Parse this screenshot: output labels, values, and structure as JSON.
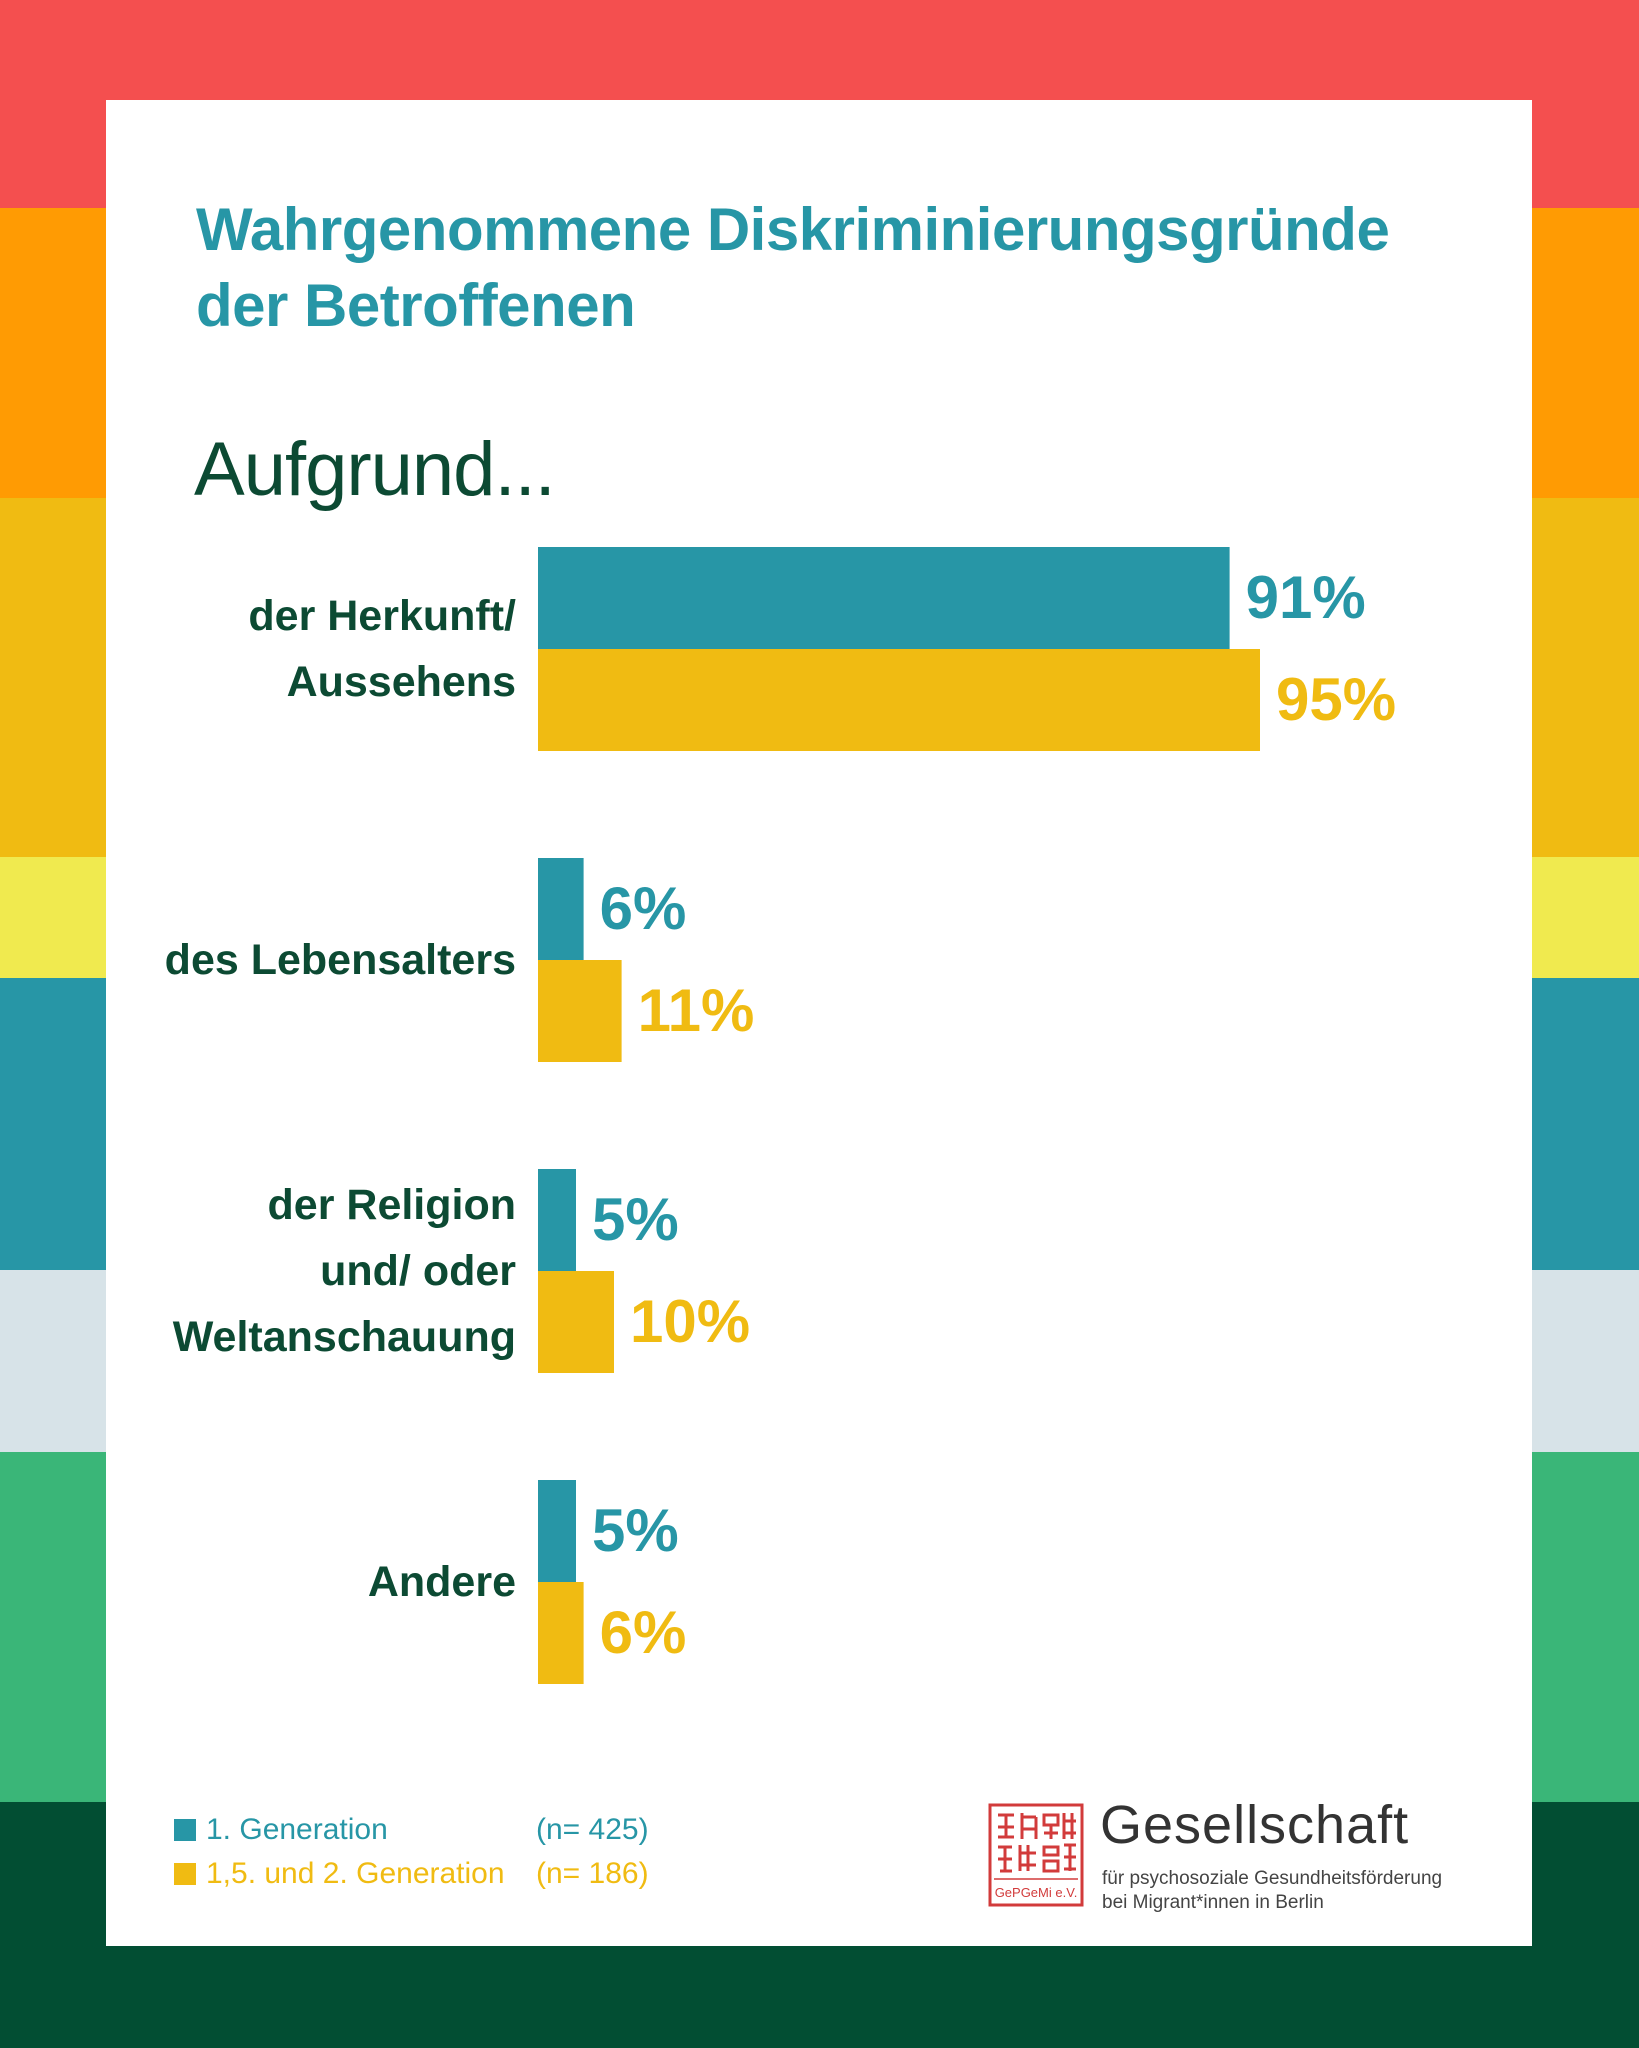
{
  "background_stripes": [
    "#f44f4f",
    "#ff9b03",
    "#f0bb12",
    "#f0ea4f",
    "#2796a6",
    "#d7e3e8",
    "#3ab678",
    "#024e33"
  ],
  "colors": {
    "series1": "#2796a6",
    "series2": "#f0bb12",
    "category_text": "#0c4a33",
    "title": "#2796a6",
    "seal": "#d23b3b"
  },
  "title_lines": [
    "Wahrgenommene Diskriminierungsgründe",
    "der Betroffenen"
  ],
  "subtitle": "Aufgrund...",
  "chart_data": {
    "type": "bar",
    "orientation": "horizontal",
    "categories": [
      [
        "der Herkunft/",
        "Aussehens"
      ],
      [
        "des Lebensalters"
      ],
      [
        "der Religion",
        "und/ oder",
        "Weltanschauung"
      ],
      [
        "Andere"
      ]
    ],
    "series": [
      {
        "name": "1. Generation",
        "values": [
          91,
          6,
          5,
          5
        ],
        "labels": [
          "91%",
          "6%",
          "5%",
          "5%"
        ]
      },
      {
        "name": "1,5. und 2. Generation",
        "values": [
          95,
          11,
          10,
          6
        ],
        "labels": [
          "95%",
          "11%",
          "10%",
          "6%"
        ]
      }
    ],
    "unit": "%",
    "xlim": [
      0,
      100
    ],
    "grid": false,
    "legend": "bottom-left"
  },
  "legend": [
    {
      "label": "1.  Generation",
      "n": "(n= 425)"
    },
    {
      "label": "1,5. und 2.  Generation",
      "n": "(n= 186)"
    }
  ],
  "logo": {
    "name": "Gesellschaft",
    "line1": "für psychosoziale Gesundheitsförderung",
    "line2": "bei Migrant*innen in Berlin",
    "seal_text": "GePGeMi e.V."
  }
}
